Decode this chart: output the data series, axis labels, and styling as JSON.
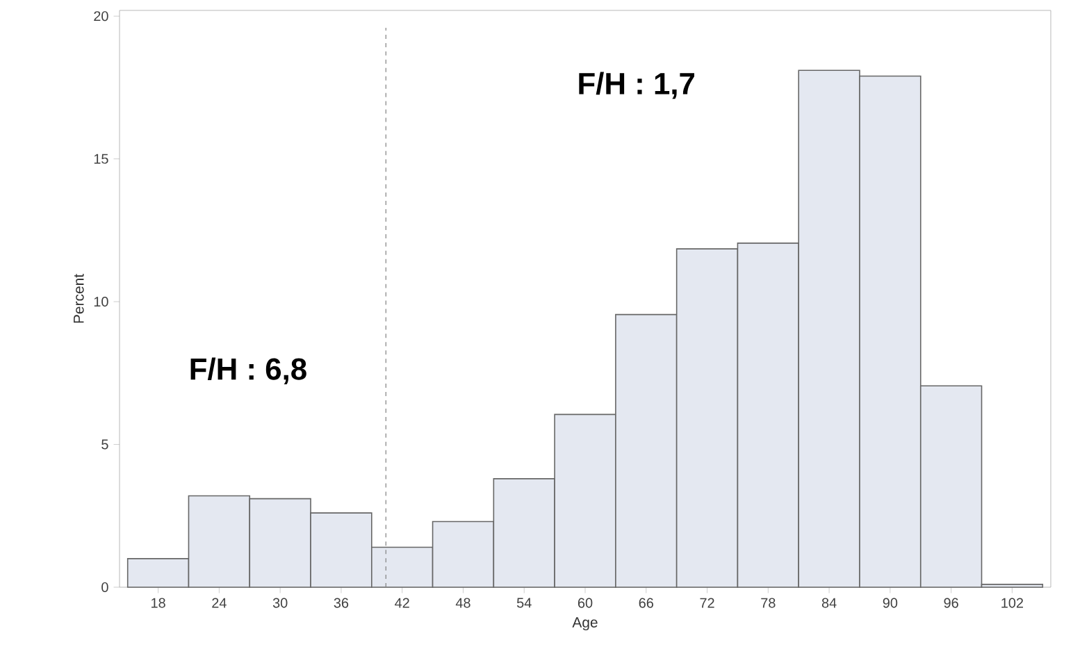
{
  "chart_data": {
    "type": "histogram",
    "xlabel": "Age",
    "ylabel": "Percent",
    "bins": [
      15,
      21,
      27,
      33,
      39,
      45,
      51,
      57,
      63,
      69,
      75,
      81,
      87,
      93,
      99,
      105
    ],
    "values": [
      1.0,
      3.2,
      3.1,
      2.6,
      1.4,
      2.3,
      3.8,
      6.05,
      9.55,
      11.85,
      12.05,
      18.1,
      17.9,
      7.05,
      0.1
    ],
    "color": "#e4e8f1",
    "xlim": [
      14.2,
      105.8
    ],
    "ylim": [
      0,
      20.2
    ],
    "xticks": [
      18,
      24,
      30,
      36,
      42,
      48,
      54,
      60,
      66,
      72,
      78,
      84,
      90,
      96,
      102
    ],
    "yticks": [
      0,
      5,
      10,
      15,
      20
    ],
    "ref_lines": [
      {
        "axis": "x",
        "value": 40.4,
        "line_style": "dashed",
        "color": "#808080"
      }
    ],
    "annotations": [
      "F/H : 6,8",
      "F/H : 1,7"
    ]
  }
}
